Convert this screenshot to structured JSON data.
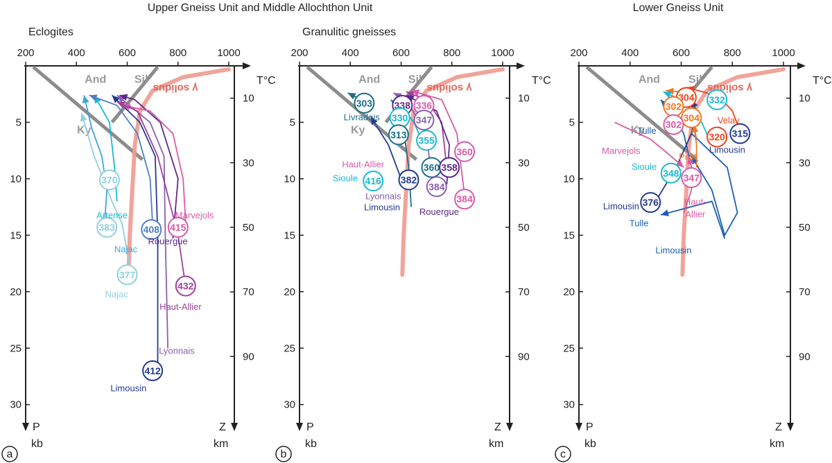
{
  "headers": {
    "left": "Upper Gneiss Unit and Middle Allochthon Unit",
    "right": "Lower Gneiss Unit"
  },
  "chart_data": [
    {
      "panel_label": "a",
      "subtitle": "Eclogites",
      "type": "line",
      "xlabel": "T°C",
      "ylabel_top": "P",
      "ylabel_bottom": "kb",
      "zlabel_top": "Z",
      "zlabel_bottom": "km",
      "xlim": [
        200,
        1000
      ],
      "ylim": [
        0,
        31
      ],
      "x_ticks": [
        200,
        400,
        600,
        800,
        1000
      ],
      "p_ticks": [
        5,
        10,
        15,
        20,
        25,
        30
      ],
      "z_ticks": [
        10,
        30,
        50,
        70,
        90
      ],
      "fields": {
        "and": "And",
        "sil": "Sil",
        "ky": "Ky",
        "solidus": "γ solidus"
      },
      "series": [
        {
          "color": "#8fd0e0",
          "path": [
            [
              610,
              17.8
            ],
            [
              580,
              14
            ],
            [
              540,
              12
            ],
            [
              470,
              8
            ],
            [
              420,
              4.2
            ]
          ]
        },
        {
          "color": "#3da5d8",
          "path": [
            [
              510,
              14.2
            ],
            [
              520,
              11
            ],
            [
              500,
              8
            ],
            [
              460,
              5.5
            ],
            [
              430,
              2.6
            ]
          ]
        },
        {
          "color": "#1ab8d0",
          "path": [
            [
              560,
              12
            ],
            [
              550,
              9
            ],
            [
              530,
              5
            ],
            [
              470,
              2.6
            ]
          ]
        },
        {
          "color": "#4f7fc4",
          "path": [
            [
              700,
              14
            ],
            [
              690,
              10
            ],
            [
              640,
              6
            ],
            [
              560,
              3.5
            ],
            [
              450,
              2.6
            ]
          ]
        },
        {
          "color": "#233a8f",
          "path": [
            [
              720,
              26.4
            ],
            [
              720,
              15
            ],
            [
              710,
              8
            ],
            [
              650,
              5
            ],
            [
              540,
              2.6
            ]
          ]
        },
        {
          "color": "#8a5fb0",
          "path": [
            [
              760,
              25
            ],
            [
              750,
              15
            ],
            [
              745,
              8
            ],
            [
              690,
              5
            ],
            [
              560,
              2.6
            ]
          ]
        },
        {
          "color": "#5b2a8a",
          "path": [
            [
              780,
              15.3
            ],
            [
              800,
              10
            ],
            [
              730,
              5
            ],
            [
              630,
              3
            ],
            [
              570,
              2.6
            ]
          ]
        },
        {
          "color": "#d85aa8",
          "path": [
            [
              830,
              13.8
            ],
            [
              820,
              10
            ],
            [
              780,
              6
            ],
            [
              690,
              4
            ],
            [
              580,
              3.5
            ]
          ]
        },
        {
          "color": "#a0409b",
          "path": [
            [
              830,
              19.5
            ],
            [
              800,
              15
            ],
            [
              720,
              8
            ],
            [
              640,
              4
            ],
            [
              560,
              3.2
            ]
          ]
        }
      ],
      "ages": [
        {
          "label": "370",
          "color": "#8fd0e0",
          "T": 530,
          "P": 10.1
        },
        {
          "label": "383",
          "color": "#8fd0e0",
          "T": 520,
          "P": 14.3
        },
        {
          "label": "377",
          "color": "#8fd0e0",
          "T": 600,
          "P": 18.5
        },
        {
          "label": "408",
          "color": "#4f7fc4",
          "T": 695,
          "P": 14.5
        },
        {
          "label": "412",
          "color": "#233a8f",
          "T": 700,
          "P": 27
        },
        {
          "label": "415",
          "color": "#d85aa8",
          "T": 800,
          "P": 14.3
        },
        {
          "label": "432",
          "color": "#a0409b",
          "T": 830,
          "P": 19.5
        }
      ],
      "locations": [
        {
          "label": "Artense",
          "color": "#1ab8d0",
          "T": 540,
          "P": 13.2
        },
        {
          "label": "Najac",
          "color": "#3da5d8",
          "T": 595,
          "P": 16.2
        },
        {
          "label": "Najac",
          "color": "#8fd0e0",
          "T": 558,
          "P": 20.2
        },
        {
          "label": "Marvejols",
          "color": "#d85aa8",
          "T": 865,
          "P": 13.2
        },
        {
          "label": "Rouergue",
          "color": "#5b2a8a",
          "T": 760,
          "P": 15.5
        },
        {
          "label": "Haut-Allier",
          "color": "#a0409b",
          "T": 810,
          "P": 21.3
        },
        {
          "label": "Lyonnais",
          "color": "#8a5fb0",
          "T": 795,
          "P": 25.2
        },
        {
          "label": "Limousin",
          "color": "#233a8f",
          "T": 605,
          "P": 28.5
        }
      ]
    },
    {
      "panel_label": "b",
      "subtitle": "Granulitic gneisses",
      "type": "line",
      "xlabel": "T°C",
      "ylabel_top": "P",
      "ylabel_bottom": "kb",
      "zlabel_top": "Z",
      "zlabel_bottom": "km",
      "xlim": [
        200,
        1000
      ],
      "ylim": [
        0,
        31
      ],
      "x_ticks": [
        200,
        400,
        600,
        800,
        1000
      ],
      "p_ticks": [
        5,
        10,
        15,
        20,
        25,
        30
      ],
      "z_ticks": [
        10,
        30,
        50,
        70,
        90
      ],
      "fields": {
        "and": "And",
        "sil": "Sil",
        "ky": "Ky",
        "solidus": "γ solidus"
      },
      "series": [
        {
          "color": "#1a6d8c",
          "path": [
            [
              470,
              3.3
            ],
            [
              390,
              2.4
            ]
          ]
        },
        {
          "color": "#233a8f",
          "path": [
            [
              600,
              10
            ],
            [
              550,
              7
            ],
            [
              480,
              4.5
            ]
          ]
        },
        {
          "color": "#8a5fb0",
          "path": [
            [
              720,
              10
            ],
            [
              700,
              6
            ],
            [
              620,
              3
            ],
            [
              570,
              2.4
            ]
          ]
        },
        {
          "color": "#a0409b",
          "path": [
            [
              780,
              9
            ],
            [
              760,
              5
            ],
            [
              700,
              3
            ],
            [
              620,
              2.3
            ]
          ]
        },
        {
          "color": "#d85aa8",
          "path": [
            [
              850,
              11.5
            ],
            [
              820,
              6
            ],
            [
              760,
              3
            ],
            [
              640,
              2.2
            ]
          ]
        },
        {
          "color": "#1ab8d0",
          "path": [
            [
              690,
              7
            ],
            [
              650,
              5
            ],
            [
              600,
              3.5
            ]
          ]
        },
        {
          "color": "#5b2a8a",
          "path": [
            [
              780,
              10.5
            ],
            [
              790,
              7
            ],
            [
              740,
              4
            ],
            [
              620,
              2.6
            ]
          ]
        },
        {
          "color": "#1a6d8c",
          "path": [
            [
              640,
              12.5
            ],
            [
              630,
              9
            ],
            [
              600,
              4
            ],
            [
              560,
              3
            ]
          ]
        }
      ],
      "ages": [
        {
          "label": "303",
          "color": "#1a6d8c",
          "T": 455,
          "P": 3.3
        },
        {
          "label": "338",
          "color": "#5b2a8a",
          "T": 605,
          "P": 3.5
        },
        {
          "label": "336",
          "color": "#d85aa8",
          "T": 690,
          "P": 3.5
        },
        {
          "label": "330",
          "color": "#1ab8d0",
          "T": 595,
          "P": 4.6
        },
        {
          "label": "347",
          "color": "#8a5fb0",
          "T": 690,
          "P": 4.8
        },
        {
          "label": "313",
          "color": "#1a6d8c",
          "T": 590,
          "P": 6.1
        },
        {
          "label": "355",
          "color": "#1ab8d0",
          "T": 700,
          "P": 6.6
        },
        {
          "label": "360",
          "color": "#d85aa8",
          "T": 850,
          "P": 7.6
        },
        {
          "label": "360",
          "color": "#1a6d8c",
          "T": 720,
          "P": 9.0
        },
        {
          "label": "358",
          "color": "#5b2a8a",
          "T": 790,
          "P": 9.0
        },
        {
          "label": "416",
          "color": "#1ab8d0",
          "T": 490,
          "P": 10.2
        },
        {
          "label": "382",
          "color": "#233a8f",
          "T": 630,
          "P": 10.1
        },
        {
          "label": "384",
          "color": "#8a5fb0",
          "T": 740,
          "P": 10.7
        },
        {
          "label": "384",
          "color": "#d85aa8",
          "T": 850,
          "P": 11.8
        }
      ],
      "locations": [
        {
          "label": "Livradois",
          "color": "#1a6d8c",
          "T": 445,
          "P": 4.5
        },
        {
          "label": "Haut-Allier",
          "color": "#d85aa8",
          "T": 450,
          "P": 8.7
        },
        {
          "label": "Sioule",
          "color": "#1ab8d0",
          "T": 380,
          "P": 9.9
        },
        {
          "label": "Lyonnais",
          "color": "#8a5fb0",
          "T": 530,
          "P": 11.5
        },
        {
          "label": "Limousin",
          "color": "#233a8f",
          "T": 525,
          "P": 12.5
        },
        {
          "label": "Rouergue",
          "color": "#5b2a8a",
          "T": 750,
          "P": 12.9
        }
      ]
    },
    {
      "panel_label": "c",
      "subtitle": "",
      "type": "line",
      "xlabel": "T°C",
      "ylabel_top": "P",
      "ylabel_bottom": "kb",
      "zlabel_top": "Z",
      "zlabel_bottom": "km",
      "xlim": [
        200,
        1000
      ],
      "ylim": [
        0,
        31
      ],
      "x_ticks": [
        200,
        400,
        600,
        800,
        1000
      ],
      "p_ticks": [
        5,
        10,
        15,
        20,
        25,
        30
      ],
      "z_ticks": [
        10,
        30,
        50,
        70,
        90
      ],
      "fields": {
        "and": "And",
        "sil": "Sil",
        "ky": "Ky",
        "solidus": "γ solidus"
      },
      "series": [
        {
          "color": "#e8421e",
          "path": [
            [
              820,
              5.2
            ],
            [
              800,
              4
            ],
            [
              760,
              3
            ],
            [
              700,
              2.4
            ],
            [
              620,
              1.9
            ]
          ]
        },
        {
          "color": "#f07522",
          "path": [
            [
              660,
              6.5
            ],
            [
              640,
              4
            ],
            [
              600,
              2.3
            ],
            [
              540,
              2.2
            ]
          ]
        },
        {
          "color": "#1ab8d0",
          "path": [
            [
              720,
              7
            ],
            [
              680,
              5
            ],
            [
              600,
              3
            ],
            [
              530,
              2.3
            ]
          ]
        },
        {
          "color": "#1a5fb0",
          "path": [
            [
              640,
              9
            ],
            [
              610,
              6
            ],
            [
              560,
              4
            ],
            [
              520,
              3
            ]
          ]
        },
        {
          "color": "#233a8f",
          "path": [
            [
              500,
              12
            ],
            [
              580,
              9
            ],
            [
              640,
              6
            ],
            [
              660,
              4
            ],
            [
              640,
              3
            ]
          ]
        },
        {
          "color": "#1a5fb0",
          "path": [
            [
              770,
              15.3
            ],
            [
              720,
              12
            ],
            [
              520,
              13.2
            ]
          ]
        },
        {
          "color": "#1a5fb0",
          "path": [
            [
              640,
              6
            ],
            [
              780,
              9
            ],
            [
              820,
              13
            ],
            [
              770,
              15
            ],
            [
              720,
              11
            ],
            [
              640,
              8
            ]
          ]
        },
        {
          "color": "#d85aa8",
          "path": [
            [
              340,
              5
            ],
            [
              480,
              6.5
            ],
            [
              560,
              8
            ],
            [
              610,
              9
            ]
          ]
        },
        {
          "color": "#d85aa8",
          "path": [
            [
              610,
              13
            ],
            [
              640,
              11
            ],
            [
              640,
              9
            ],
            [
              630,
              8
            ]
          ]
        },
        {
          "color": "#f07522",
          "path": [
            [
              660,
              9
            ],
            [
              660,
              7
            ],
            [
              650,
              5.2
            ]
          ]
        }
      ],
      "ages": [
        {
          "label": "304",
          "color": "#e8421e",
          "T": 620,
          "P": 2.8
        },
        {
          "label": "332",
          "color": "#1ab8d0",
          "T": 740,
          "P": 3.0
        },
        {
          "label": "302",
          "color": "#f07522",
          "T": 570,
          "P": 3.6
        },
        {
          "label": "304",
          "color": "#f07522",
          "T": 640,
          "P": 4.6
        },
        {
          "label": "302",
          "color": "#d85aa8",
          "T": 570,
          "P": 5.2
        },
        {
          "label": "320",
          "color": "#e8421e",
          "T": 740,
          "P": 6.3
        },
        {
          "label": "315",
          "color": "#233a8f",
          "T": 830,
          "P": 6.0
        },
        {
          "label": "348",
          "color": "#1ab8d0",
          "T": 560,
          "P": 9.5
        },
        {
          "label": "347",
          "color": "#d85aa8",
          "T": 640,
          "P": 9.9
        },
        {
          "label": "376",
          "color": "#233a8f",
          "T": 480,
          "P": 12.1
        }
      ],
      "locations": [
        {
          "label": "Velay",
          "color": "#e8421e",
          "T": 785,
          "P": 4.8
        },
        {
          "label": "Tulle",
          "color": "#1a5fb0",
          "T": 465,
          "P": 5.7
        },
        {
          "label": "Marvejols",
          "color": "#d85aa8",
          "T": 365,
          "P": 7.5
        },
        {
          "label": "Limousin",
          "color": "#233a8f",
          "T": 780,
          "P": 7.4
        },
        {
          "label": "Pilat",
          "color": "#f07522",
          "T": 625,
          "P": 8.0
        },
        {
          "label": "Sioule",
          "color": "#1ab8d0",
          "T": 455,
          "P": 8.9
        },
        {
          "label": "Limousin",
          "color": "#233a8f",
          "T": 365,
          "P": 12.4
        },
        {
          "label": "Haut-",
          "color": "#d85aa8",
          "T": 655,
          "P": 12.0
        },
        {
          "label": "Allier",
          "color": "#d85aa8",
          "T": 655,
          "P": 13.1
        },
        {
          "label": "Tulle",
          "color": "#1a5fb0",
          "T": 435,
          "P": 13.9
        },
        {
          "label": "Limousin",
          "color": "#1a5fb0",
          "T": 570,
          "P": 16.3
        }
      ]
    }
  ]
}
